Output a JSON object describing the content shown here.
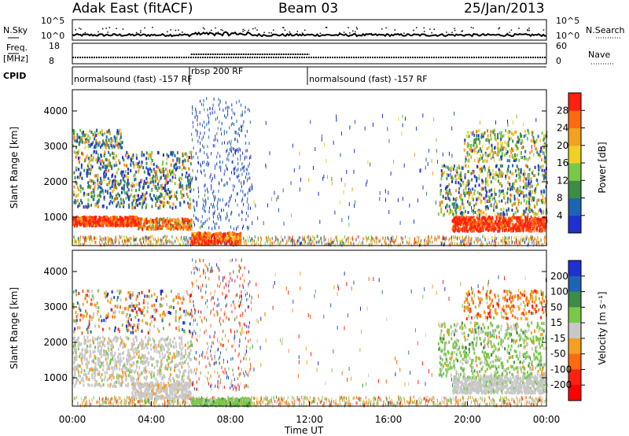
{
  "header": {
    "station": "Adak East (fitACF)",
    "beam": "Beam 03",
    "date": "25/Jan/2013"
  },
  "panels": {
    "nsky_label": "N.Sky",
    "nsky_ticks": [
      "10^5",
      "10^0"
    ],
    "freq_label": "Freq.",
    "freq_unit": "[MHz]",
    "freq_ticks": [
      "18",
      "8"
    ],
    "cpid_label": "CPID",
    "nsearch_label": "N.Search",
    "nsearch_ticks": [
      "10^5",
      "10^0"
    ],
    "nave_label": "Nave",
    "nave_ticks": [
      "60",
      "0"
    ],
    "cpid_segments": [
      {
        "label": "normalsound (fast) -157 RF",
        "start_h": 0.0
      },
      {
        "label": "rbsp 200 RF",
        "start_h": 6.0
      },
      {
        "label": "normalsound (fast) -157 RF",
        "start_h": 12.0
      }
    ]
  },
  "chart_data": [
    {
      "type": "heatmap",
      "name": "Power",
      "ylabel": "Slant Range [km]",
      "x_range_h": [
        0,
        24
      ],
      "ylim": [
        200,
        4600
      ],
      "y_ticks": [
        1000,
        2000,
        3000,
        4000
      ],
      "colorbar_label": "Power [dB]",
      "colorbar_ticks": [
        "4",
        "8",
        "12",
        "16",
        "20",
        "24",
        "28"
      ],
      "colorbar_colors": [
        "#2030d0",
        "#1f64b4",
        "#3c8c46",
        "#7ac84a",
        "#f0d020",
        "#f4a020",
        "#ff6a10",
        "#ff2010"
      ]
    },
    {
      "type": "heatmap",
      "name": "Velocity",
      "ylabel": "Slant Range [km]",
      "xlabel": "Time UT",
      "x_range_h": [
        0,
        24
      ],
      "ylim": [
        200,
        4600
      ],
      "y_ticks": [
        1000,
        2000,
        3000,
        4000
      ],
      "x_ticks": [
        "00:00",
        "04:00",
        "08:00",
        "12:00",
        "16:00",
        "20:00",
        "00:00"
      ],
      "colorbar_label": "Velocity [m s⁻¹]",
      "colorbar_ticks": [
        "200",
        "100",
        "50",
        "15",
        "-15",
        "-50",
        "-100",
        "-200"
      ],
      "colorbar_colors": [
        "#2030d0",
        "#1f64b4",
        "#3c8c46",
        "#7ac84a",
        "#c8c8c8",
        "#f4a020",
        "#ff6a10",
        "#ff2010"
      ]
    }
  ]
}
